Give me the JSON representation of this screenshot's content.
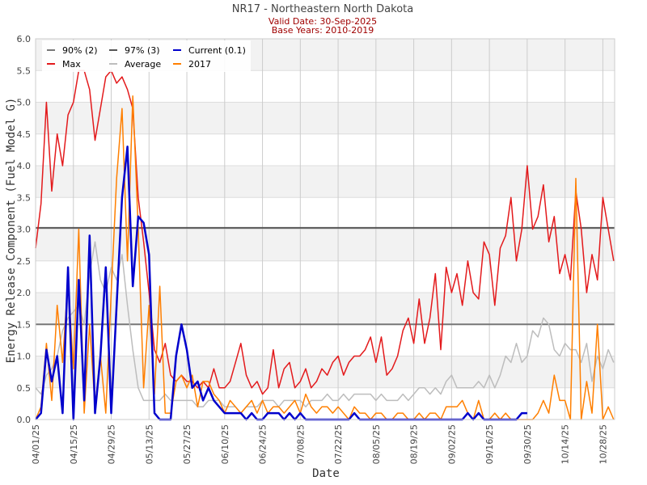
{
  "chart_data": {
    "type": "line",
    "title": "NR17 - Northeastern North Dakota",
    "subtitle_1": "Valid Date: 30-Sep-2025",
    "subtitle_2": "Base Years: 2010-2019",
    "xlabel": "Date",
    "ylabel": "Energy Release Component (Fuel Model G)",
    "ylim": [
      0,
      6.0
    ],
    "yticks": [
      "0.0",
      "0.5",
      "1.0",
      "1.5",
      "2.0",
      "2.5",
      "3.0",
      "3.5",
      "4.0",
      "4.5",
      "5.0",
      "5.5",
      "6.0"
    ],
    "x_start": "04/01/25",
    "x_days_total": 215,
    "x_step_days": 2,
    "xticks": [
      "04/01/25",
      "04/15/25",
      "04/29/25",
      "05/13/25",
      "05/27/25",
      "06/10/25",
      "06/24/25",
      "07/08/25",
      "07/22/25",
      "08/05/25",
      "08/19/25",
      "09/02/25",
      "09/16/25",
      "09/30/25",
      "10/14/25",
      "10/28/25"
    ],
    "grid": true,
    "legend_position": "top-left",
    "thresholds": [
      {
        "name": "90% (2)",
        "value": 1.5,
        "color": "#777777"
      },
      {
        "name": "97% (3)",
        "value": 3.02,
        "color": "#555555"
      }
    ],
    "series": [
      {
        "name": "Max",
        "color": "#e31a1c",
        "values": [
          2.7,
          3.4,
          5.0,
          3.6,
          4.5,
          4.0,
          4.8,
          5.0,
          5.5,
          5.5,
          5.2,
          4.4,
          4.9,
          5.4,
          5.5,
          5.3,
          5.4,
          5.2,
          4.9,
          3.5,
          2.8,
          2.0,
          1.1,
          0.9,
          1.2,
          0.7,
          0.6,
          0.7,
          0.6,
          0.6,
          0.5,
          0.6,
          0.5,
          0.8,
          0.5,
          0.5,
          0.6,
          0.9,
          1.2,
          0.7,
          0.5,
          0.6,
          0.4,
          0.5,
          1.1,
          0.5,
          0.8,
          0.9,
          0.5,
          0.6,
          0.8,
          0.5,
          0.6,
          0.8,
          0.7,
          0.9,
          1.0,
          0.7,
          0.9,
          1.0,
          1.0,
          1.1,
          1.3,
          0.9,
          1.3,
          0.7,
          0.8,
          1.0,
          1.4,
          1.6,
          1.2,
          1.9,
          1.2,
          1.6,
          2.3,
          1.1,
          2.4,
          2.0,
          2.3,
          1.8,
          2.5,
          2.0,
          1.9,
          2.8,
          2.6,
          1.8,
          2.7,
          2.9,
          3.5,
          2.5,
          3.0,
          4.0,
          3.0,
          3.2,
          3.7,
          2.8,
          3.2,
          2.3,
          2.6,
          2.2,
          3.6,
          3.0,
          2.0,
          2.6,
          2.2,
          3.5,
          3.0,
          2.5
        ]
      },
      {
        "name": "Average",
        "color": "#bdbdbd",
        "values": [
          0.5,
          0.4,
          0.7,
          0.8,
          1.0,
          1.4,
          1.6,
          1.7,
          1.8,
          1.5,
          2.3,
          2.8,
          2.2,
          2.0,
          2.4,
          2.2,
          2.6,
          1.8,
          1.1,
          0.5,
          0.3,
          0.3,
          0.3,
          0.3,
          0.4,
          0.3,
          0.3,
          0.3,
          0.3,
          0.3,
          0.2,
          0.2,
          0.3,
          0.3,
          0.3,
          0.2,
          0.2,
          0.2,
          0.1,
          0.2,
          0.2,
          0.2,
          0.3,
          0.3,
          0.3,
          0.2,
          0.3,
          0.3,
          0.3,
          0.3,
          0.2,
          0.3,
          0.3,
          0.3,
          0.4,
          0.3,
          0.3,
          0.4,
          0.3,
          0.4,
          0.4,
          0.4,
          0.4,
          0.3,
          0.4,
          0.3,
          0.3,
          0.3,
          0.4,
          0.3,
          0.4,
          0.5,
          0.5,
          0.4,
          0.5,
          0.4,
          0.6,
          0.7,
          0.5,
          0.5,
          0.5,
          0.5,
          0.6,
          0.5,
          0.7,
          0.5,
          0.7,
          1.0,
          0.9,
          1.2,
          0.9,
          1.0,
          1.4,
          1.3,
          1.6,
          1.5,
          1.1,
          1.0,
          1.2,
          1.1,
          1.1,
          0.9,
          1.2,
          0.6,
          1.0,
          0.8,
          1.1,
          0.9
        ]
      },
      {
        "name": "2017",
        "color": "#ff7f00",
        "values": [
          0,
          0.2,
          1.2,
          0.3,
          1.8,
          0.9,
          2.2,
          0.8,
          3.0,
          0.1,
          1.5,
          0.2,
          1.0,
          0.1,
          2.0,
          3.8,
          4.9,
          2.5,
          5.1,
          3.0,
          0.5,
          1.8,
          0.4,
          2.1,
          0.1,
          0.1,
          0.6,
          0.7,
          0.5,
          0.7,
          0.2,
          0.6,
          0.6,
          0.4,
          0.3,
          0.1,
          0.3,
          0.2,
          0.1,
          0.2,
          0.3,
          0.1,
          0.3,
          0.1,
          0.2,
          0.2,
          0.1,
          0.2,
          0.3,
          0.1,
          0.4,
          0.2,
          0.1,
          0.2,
          0.2,
          0.1,
          0.2,
          0.1,
          0,
          0.2,
          0.1,
          0.1,
          0,
          0.1,
          0.1,
          0,
          0,
          0.1,
          0.1,
          0,
          0,
          0.1,
          0,
          0.1,
          0.1,
          0,
          0.2,
          0.2,
          0.2,
          0.3,
          0.1,
          0,
          0.3,
          0,
          0,
          0.1,
          0,
          0.1,
          0,
          0,
          0,
          0,
          0,
          0.1,
          0.3,
          0.1,
          0.7,
          0.3,
          0.3,
          0,
          3.8,
          0,
          0.6,
          0.1,
          1.5,
          0,
          0.2,
          0
        ]
      },
      {
        "name": "Current (0.1)",
        "color": "#0000cc",
        "values": [
          0,
          0.1,
          1.1,
          0.6,
          1.0,
          0.1,
          2.4,
          0,
          2.2,
          0.3,
          2.9,
          0.1,
          1.0,
          2.4,
          0.1,
          1.8,
          3.5,
          4.3,
          2.1,
          3.2,
          3.1,
          2.6,
          0.1,
          0,
          0,
          0,
          1.0,
          1.5,
          1.1,
          0.5,
          0.6,
          0.3,
          0.5,
          0.3,
          0.2,
          0.1,
          0.1,
          0.1,
          0.1,
          0,
          0.1,
          0,
          0,
          0.1,
          0.1,
          0.1,
          0,
          0.1,
          0,
          0.1,
          0,
          0,
          0,
          0,
          0,
          0,
          0,
          0,
          0,
          0.1,
          0,
          0,
          0,
          0,
          0,
          0,
          0,
          0,
          0,
          0,
          0,
          0,
          0,
          0,
          0,
          0,
          0,
          0,
          0,
          0,
          0.1,
          0,
          0.1,
          0,
          0,
          0,
          0,
          0,
          0,
          0,
          0.1,
          0.1
        ]
      }
    ],
    "legend": [
      "90% (2)",
      "97% (3)",
      "Current (0.1)",
      "Max",
      "Average",
      "2017"
    ]
  }
}
